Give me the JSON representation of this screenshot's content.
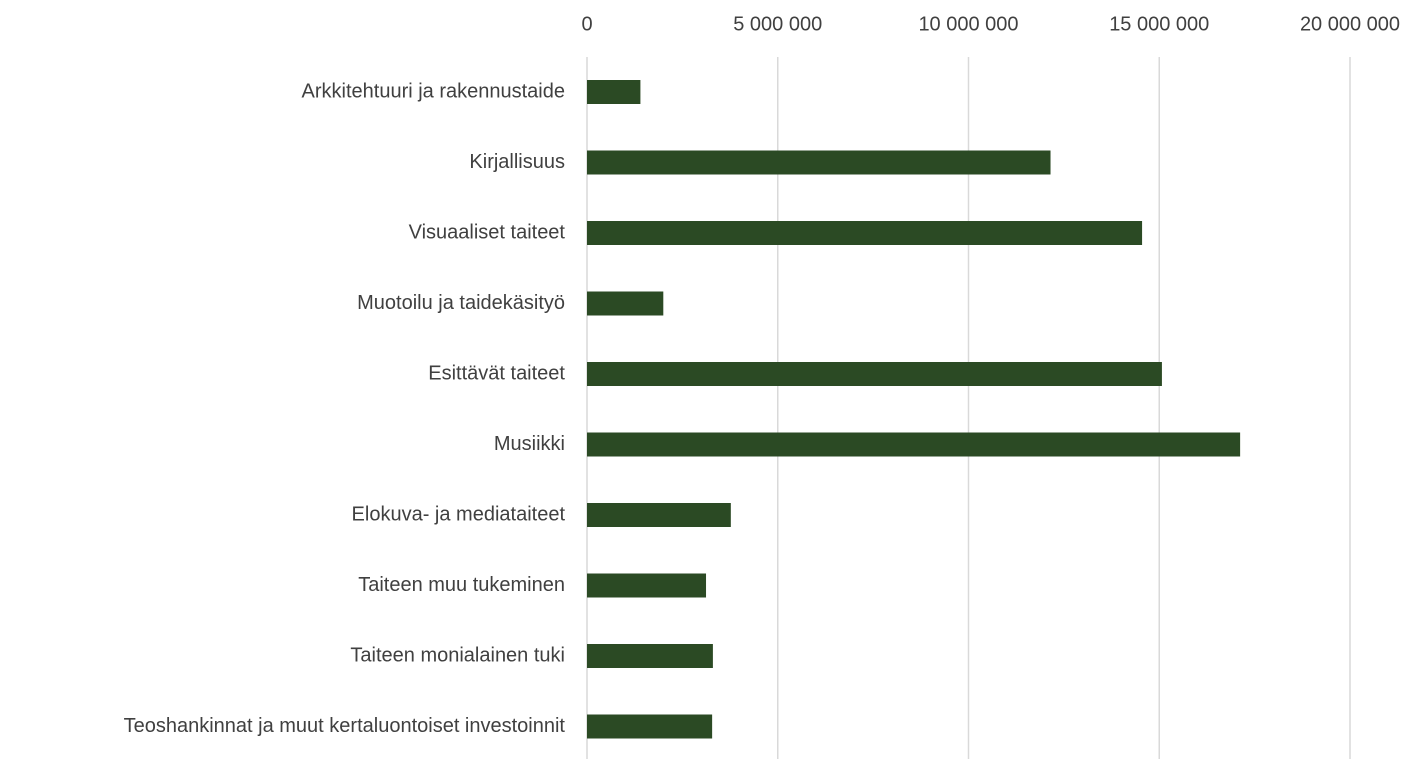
{
  "chart_data": {
    "type": "bar",
    "orientation": "horizontal",
    "categories": [
      "Arkkitehtuuri ja rakennustaide",
      "Kirjallisuus",
      "Visuaaliset taiteet",
      "Muotoilu ja taidekäsityö",
      "Esittävät taiteet",
      "Musiikki",
      "Elokuva- ja mediataiteet",
      "Taiteen muu tukeminen",
      "Taiteen monialainen tuki",
      "Teoshankinnat ja muut kertaluontoiset investoinnit"
    ],
    "values": [
      1400000,
      12150000,
      14550000,
      2000000,
      15070000,
      17120000,
      3770000,
      3120000,
      3300000,
      3280000
    ],
    "color": "#2b4a24",
    "xlim": [
      0,
      20000000
    ],
    "xticks": [
      0,
      {
        "value": 5000000,
        "label": "5 000 000"
      },
      {
        "value": 10000000,
        "label": "10 000 000"
      },
      {
        "value": 15000000,
        "label": "15 000 000"
      },
      {
        "value": 20000000,
        "label": "20 000 000"
      }
    ],
    "grid": true
  }
}
